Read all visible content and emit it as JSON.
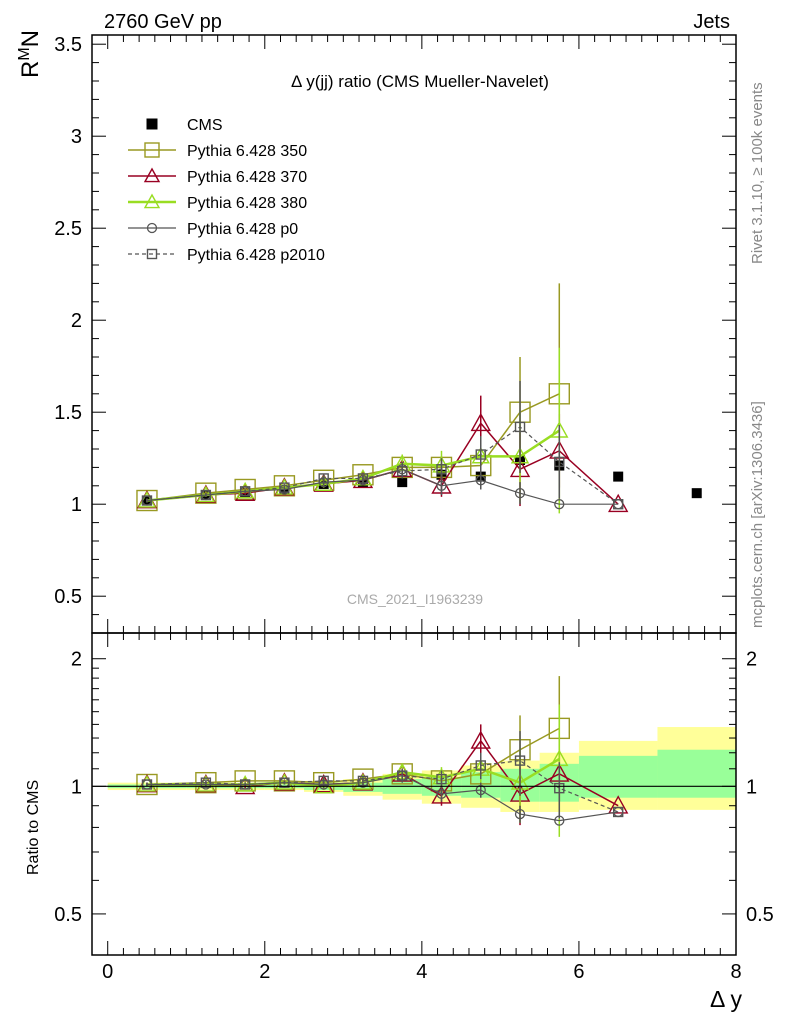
{
  "header": {
    "left": "2760 GeV pp",
    "right": "Jets"
  },
  "side_labels": {
    "rivet": "Rivet 3.1.10, ≥ 100k events",
    "mcplots": "mcplots.cern.ch [arXiv:1306.3436]"
  },
  "watermark": "CMS_2021_I1963239",
  "colors": {
    "cms": "#000000",
    "p350": "#999922",
    "p370": "#990022",
    "p380": "#99dd22",
    "p0": "#555555",
    "p2010": "#555555",
    "band_inner": "#99ff99",
    "band_outer": "#ffff99"
  },
  "chart_data": [
    {
      "type": "line",
      "title": "Δ y(jj) ratio (CMS Mueller-Navelet)",
      "ylabel": "R^M_N",
      "xlabel": "Δ y",
      "xlim": [
        -0.2,
        8.0
      ],
      "ylim": [
        0.3,
        3.55
      ],
      "xticks": [
        "0",
        "2",
        "4",
        "6",
        "8"
      ],
      "yticks": [
        "0.5",
        "1",
        "1.5",
        "2",
        "2.5",
        "3",
        "3.5"
      ],
      "legend_position": "top-left",
      "series": [
        {
          "name": "CMS",
          "style": "cms",
          "x": [
            0.5,
            1.25,
            1.75,
            2.25,
            2.75,
            3.25,
            3.75,
            4.25,
            4.75,
            5.25,
            5.75,
            6.5,
            7.5
          ],
          "y": [
            1.02,
            1.05,
            1.06,
            1.07,
            1.11,
            1.12,
            1.12,
            1.16,
            1.15,
            1.24,
            1.21,
            1.15,
            1.06
          ]
        },
        {
          "name": "Pythia 6.428 350",
          "style": "p350",
          "x": [
            0.5,
            1.25,
            1.75,
            2.25,
            2.75,
            3.25,
            3.75,
            4.25,
            4.75,
            5.25,
            5.75
          ],
          "y": [
            1.02,
            1.06,
            1.08,
            1.1,
            1.13,
            1.16,
            1.2,
            1.2,
            1.21,
            1.5,
            1.6
          ],
          "err": [
            0.01,
            0.01,
            0.01,
            0.01,
            0.02,
            0.02,
            0.04,
            0.06,
            0.1,
            0.3,
            0.6
          ]
        },
        {
          "name": "Pythia 6.428 370",
          "style": "p370",
          "x": [
            0.5,
            1.25,
            1.75,
            2.25,
            2.75,
            3.25,
            3.75,
            4.25,
            4.75,
            5.25,
            5.75,
            6.5
          ],
          "y": [
            1.02,
            1.05,
            1.06,
            1.09,
            1.11,
            1.13,
            1.19,
            1.1,
            1.44,
            1.19,
            1.29,
            1.0
          ],
          "err": [
            0.01,
            0.01,
            0.01,
            0.01,
            0.02,
            0.02,
            0.04,
            0.06,
            0.15,
            0.2,
            0.2,
            0.0
          ]
        },
        {
          "name": "Pythia 6.428 380",
          "style": "p380",
          "x": [
            0.5,
            1.25,
            1.75,
            2.25,
            2.75,
            3.25,
            3.75,
            4.25,
            4.75,
            5.25,
            5.75
          ],
          "y": [
            1.02,
            1.05,
            1.07,
            1.09,
            1.11,
            1.14,
            1.22,
            1.21,
            1.26,
            1.26,
            1.4
          ],
          "err": [
            0.01,
            0.01,
            0.01,
            0.01,
            0.02,
            0.02,
            0.05,
            0.08,
            0.1,
            0.25,
            0.45
          ]
        },
        {
          "name": "Pythia 6.428 p0",
          "style": "p0",
          "x": [
            0.5,
            1.25,
            1.75,
            2.25,
            2.75,
            3.25,
            3.75,
            4.25,
            4.75,
            5.25,
            5.75,
            6.5
          ],
          "y": [
            1.02,
            1.05,
            1.07,
            1.08,
            1.12,
            1.13,
            1.19,
            1.1,
            1.13,
            1.06,
            1.0,
            1.0
          ],
          "err": [
            0.01,
            0.01,
            0.01,
            0.01,
            0.02,
            0.02,
            0.04,
            0.05,
            0.05,
            0.06,
            0.0,
            0.0
          ]
        },
        {
          "name": "Pythia 6.428 p2010",
          "style": "p2010",
          "x": [
            0.5,
            1.25,
            1.75,
            2.25,
            2.75,
            3.25,
            3.75,
            4.25,
            4.75,
            5.25,
            5.75,
            6.5
          ],
          "y": [
            1.02,
            1.05,
            1.07,
            1.09,
            1.14,
            1.14,
            1.18,
            1.19,
            1.27,
            1.42,
            1.23,
            1.0
          ],
          "err": [
            0.01,
            0.01,
            0.01,
            0.01,
            0.02,
            0.02,
            0.04,
            0.06,
            0.1,
            0.25,
            0.2,
            0.0
          ]
        }
      ]
    },
    {
      "type": "line",
      "title": "",
      "ylabel": "Ratio to CMS",
      "xlabel": "Δ y",
      "xlim": [
        -0.2,
        8.0
      ],
      "ylim": [
        0.4,
        2.3
      ],
      "log_y": true,
      "yticks": [
        "0.5",
        "1",
        "2"
      ],
      "uncertainty_band": {
        "edges": [
          0,
          1,
          1.5,
          2,
          2.5,
          3,
          3.5,
          4,
          4.5,
          5,
          5.5,
          6,
          7,
          8
        ],
        "inner": [
          [
            0.99,
            1.01
          ],
          [
            0.99,
            1.01
          ],
          [
            0.99,
            1.01
          ],
          [
            0.99,
            1.01
          ],
          [
            0.98,
            1.02
          ],
          [
            0.97,
            1.02
          ],
          [
            0.96,
            1.04
          ],
          [
            0.95,
            1.05
          ],
          [
            0.94,
            1.08
          ],
          [
            0.92,
            1.1
          ],
          [
            0.92,
            1.13
          ],
          [
            0.94,
            1.18
          ],
          [
            0.94,
            1.22
          ]
        ],
        "outer": [
          [
            0.98,
            1.02
          ],
          [
            0.98,
            1.02
          ],
          [
            0.98,
            1.02
          ],
          [
            0.98,
            1.02
          ],
          [
            0.97,
            1.03
          ],
          [
            0.95,
            1.04
          ],
          [
            0.93,
            1.07
          ],
          [
            0.91,
            1.09
          ],
          [
            0.89,
            1.12
          ],
          [
            0.87,
            1.15
          ],
          [
            0.87,
            1.2
          ],
          [
            0.88,
            1.28
          ],
          [
            0.88,
            1.38
          ]
        ]
      },
      "series": [
        {
          "name": "Pythia 6.428 350",
          "style": "p350",
          "x": [
            0.5,
            1.25,
            1.75,
            2.25,
            2.75,
            3.25,
            3.75,
            4.25,
            4.75,
            5.25,
            5.75
          ],
          "y": [
            1.01,
            1.02,
            1.03,
            1.03,
            1.02,
            1.04,
            1.07,
            1.03,
            1.07,
            1.22,
            1.37
          ],
          "err": [
            0.01,
            0.01,
            0.01,
            0.01,
            0.02,
            0.02,
            0.04,
            0.05,
            0.08,
            0.25,
            0.45
          ]
        },
        {
          "name": "Pythia 6.428 370",
          "style": "p370",
          "x": [
            0.5,
            1.25,
            1.75,
            2.25,
            2.75,
            3.25,
            3.75,
            4.25,
            4.75,
            5.25,
            5.75,
            6.5
          ],
          "y": [
            1.01,
            1.01,
            1.0,
            1.02,
            1.01,
            1.02,
            1.07,
            0.95,
            1.28,
            0.96,
            1.07,
            0.9
          ],
          "err": [
            0.01,
            0.01,
            0.01,
            0.01,
            0.02,
            0.02,
            0.04,
            0.05,
            0.12,
            0.15,
            0.15,
            0.0
          ]
        },
        {
          "name": "Pythia 6.428 380",
          "style": "p380",
          "x": [
            0.5,
            1.25,
            1.75,
            2.25,
            2.75,
            3.25,
            3.75,
            4.25,
            4.75,
            5.25,
            5.75
          ],
          "y": [
            1.01,
            1.01,
            1.01,
            1.02,
            1.0,
            1.02,
            1.08,
            1.05,
            1.1,
            1.02,
            1.16
          ],
          "err": [
            0.01,
            0.01,
            0.01,
            0.01,
            0.02,
            0.02,
            0.04,
            0.06,
            0.08,
            0.2,
            0.4
          ]
        },
        {
          "name": "Pythia 6.428 p0",
          "style": "p0",
          "x": [
            0.5,
            1.25,
            1.75,
            2.25,
            2.75,
            3.25,
            3.75,
            4.25,
            4.75,
            5.25,
            5.75,
            6.5
          ],
          "y": [
            1.01,
            1.01,
            1.01,
            1.02,
            1.01,
            1.02,
            1.06,
            0.96,
            0.98,
            0.86,
            0.83,
            0.87
          ],
          "err": [
            0.01,
            0.01,
            0.01,
            0.01,
            0.02,
            0.02,
            0.03,
            0.04,
            0.04,
            0.04,
            0.0,
            0.0
          ]
        },
        {
          "name": "Pythia 6.428 p2010",
          "style": "p2010",
          "x": [
            0.5,
            1.25,
            1.75,
            2.25,
            2.75,
            3.25,
            3.75,
            4.25,
            4.75,
            5.25,
            5.75,
            6.5
          ],
          "y": [
            1.01,
            1.02,
            1.01,
            1.02,
            1.03,
            1.03,
            1.06,
            1.04,
            1.12,
            1.15,
            0.99,
            0.87
          ],
          "err": [
            0.01,
            0.01,
            0.01,
            0.01,
            0.02,
            0.02,
            0.04,
            0.05,
            0.08,
            0.2,
            0.15,
            0.0
          ]
        }
      ]
    }
  ]
}
